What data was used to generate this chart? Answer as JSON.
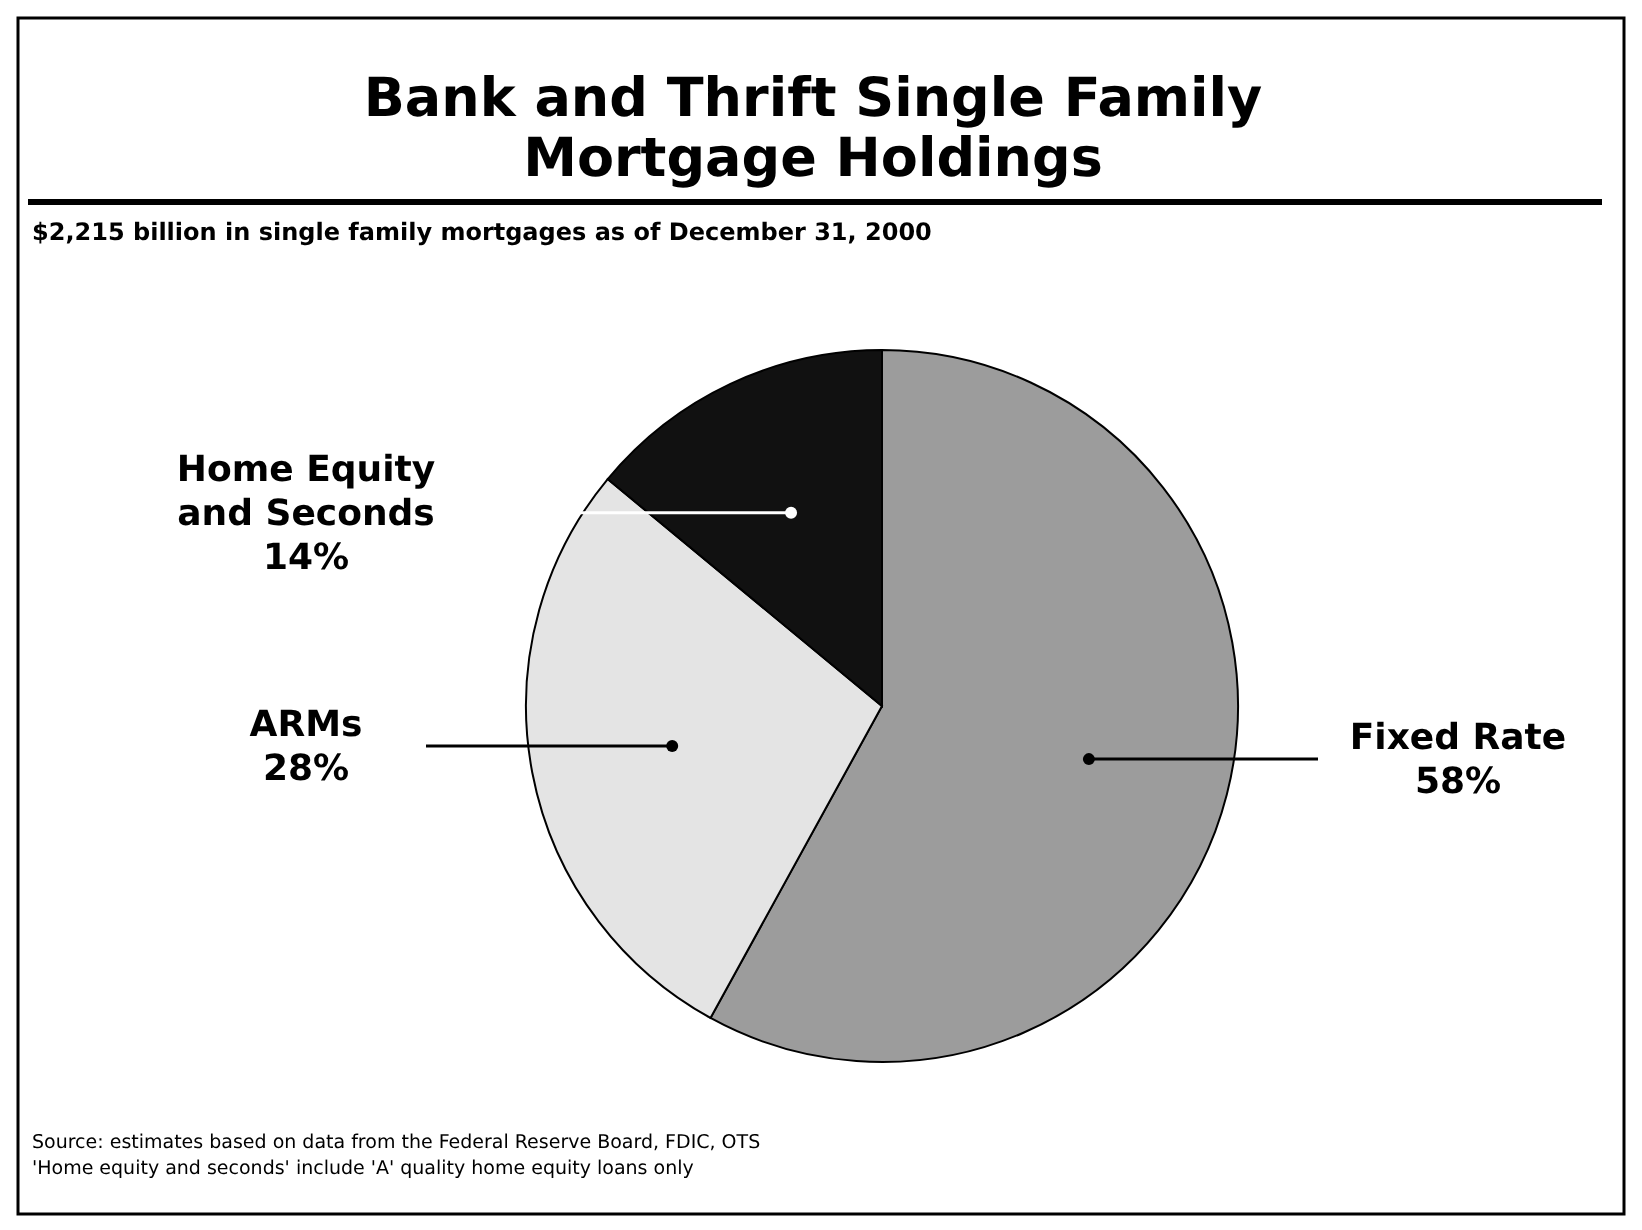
{
  "chart_data": {
    "type": "pie",
    "title": "Bank and Thrift Single Family Mortgage Holdings",
    "subtitle": "$2,215 billion in single family mortgages as of December 31, 2000",
    "categories": [
      "Fixed Rate",
      "ARMs",
      "Home Equity and Seconds"
    ],
    "values": [
      58,
      28,
      14
    ],
    "value_labels": [
      "58%",
      "28%",
      "14%"
    ],
    "colors": [
      "#9c9c9c",
      "#e4e4e4",
      "#111111"
    ],
    "annotations": [
      "Source:  estimates based on data from the Federal Reserve Board, FDIC, OTS",
      "'Home equity and seconds' include 'A' quality home equity loans only"
    ]
  }
}
